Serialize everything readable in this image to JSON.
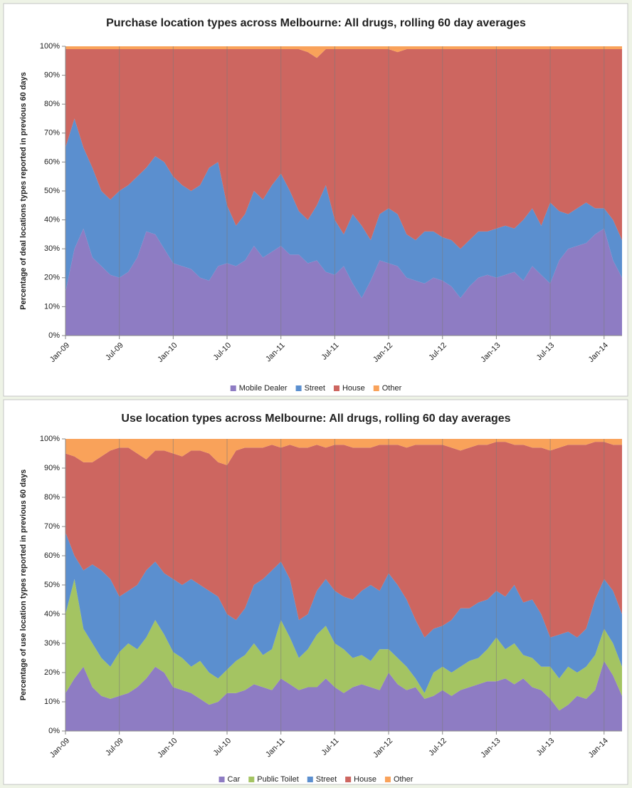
{
  "chart_data": [
    {
      "type": "stacked-area",
      "title": "Purchase location types across Melbourne: All drugs, rolling 60 day averages",
      "y_label": "Percentage of deal locations types reported in previous 60 days",
      "categories": [
        "Jan-09",
        null,
        null,
        null,
        null,
        null,
        "Jul-09",
        null,
        null,
        null,
        null,
        null,
        "Jan-10",
        null,
        null,
        null,
        null,
        null,
        "Jul-10",
        null,
        null,
        null,
        null,
        null,
        "Jan-11",
        null,
        null,
        null,
        null,
        null,
        "Jul-11",
        null,
        null,
        null,
        null,
        null,
        "Jan-12",
        null,
        null,
        null,
        null,
        null,
        "Jul-12",
        null,
        null,
        null,
        null,
        null,
        "Jan-13",
        null,
        null,
        null,
        null,
        null,
        "Jul-13",
        null,
        null,
        null,
        null,
        null,
        "Jan-14",
        null,
        null
      ],
      "ylim": [
        0,
        100
      ],
      "yticks": [
        {
          "value": 0,
          "label": "0%"
        },
        {
          "value": 10,
          "label": "10%"
        },
        {
          "value": 20,
          "label": "20%"
        },
        {
          "value": 30,
          "label": "30%"
        },
        {
          "value": 40,
          "label": "40%"
        },
        {
          "value": 50,
          "label": "50%"
        },
        {
          "value": 60,
          "label": "60%"
        },
        {
          "value": 70,
          "label": "70%"
        },
        {
          "value": 80,
          "label": "80%"
        },
        {
          "value": 90,
          "label": "90%"
        },
        {
          "value": 100,
          "label": "100%"
        }
      ],
      "grid": "x",
      "legend": "bottom",
      "series": [
        {
          "name": "Mobile Dealer",
          "color": "#8e7cc3",
          "values": [
            15,
            30,
            37,
            27,
            24,
            21,
            20,
            22,
            27,
            36,
            35,
            30,
            25,
            24,
            23,
            20,
            19,
            24,
            25,
            24,
            26,
            31,
            27,
            29,
            31,
            28,
            28,
            25,
            26,
            22,
            21,
            24,
            18,
            13,
            19,
            26,
            25,
            24,
            20,
            19,
            18,
            20,
            19,
            17,
            13,
            17,
            20,
            21,
            20,
            21,
            22,
            19,
            24,
            21,
            18,
            26,
            30,
            31,
            32,
            35,
            37,
            26,
            20
          ]
        },
        {
          "name": "Street",
          "color": "#5b8fcf",
          "values": [
            50,
            45,
            28,
            31,
            26,
            26,
            30,
            30,
            28,
            22,
            27,
            30,
            30,
            28,
            27,
            32,
            39,
            36,
            20,
            14,
            16,
            19,
            20,
            23,
            25,
            22,
            15,
            15,
            19,
            30,
            19,
            11,
            24,
            25,
            14,
            16,
            19,
            18,
            15,
            14,
            18,
            16,
            15,
            16,
            17,
            16,
            16,
            15,
            17,
            17,
            15,
            21,
            20,
            17,
            28,
            17,
            12,
            13,
            14,
            9,
            7,
            14,
            13
          ]
        },
        {
          "name": "House",
          "color": "#cd6660",
          "values": [
            34,
            24,
            34,
            41,
            49,
            52,
            49,
            47,
            44,
            41,
            37,
            39,
            44,
            47,
            49,
            47,
            41,
            39,
            54,
            61,
            57,
            49,
            52,
            47,
            43,
            49,
            56,
            58,
            51,
            47,
            59,
            64,
            57,
            61,
            66,
            57,
            55,
            56,
            64,
            66,
            63,
            63,
            65,
            66,
            69,
            66,
            63,
            63,
            62,
            61,
            62,
            59,
            55,
            61,
            53,
            56,
            57,
            55,
            53,
            55,
            55,
            59,
            66
          ]
        },
        {
          "name": "Other",
          "color": "#f9a25a",
          "values": [
            1,
            1,
            1,
            1,
            1,
            1,
            1,
            1,
            1,
            1,
            1,
            1,
            1,
            1,
            1,
            1,
            1,
            1,
            1,
            1,
            1,
            1,
            1,
            1,
            1,
            1,
            1,
            2,
            4,
            1,
            1,
            1,
            1,
            1,
            1,
            1,
            1,
            2,
            1,
            1,
            1,
            1,
            1,
            1,
            1,
            1,
            1,
            1,
            1,
            1,
            1,
            1,
            1,
            1,
            1,
            1,
            1,
            1,
            1,
            1,
            1,
            1,
            1
          ]
        }
      ]
    },
    {
      "type": "stacked-area",
      "title": "Use location types across Melbourne: All drugs, rolling 60 day averages",
      "y_label": "Percentage of use location types reported in previous 60 days",
      "categories": [
        "Jan-09",
        null,
        null,
        null,
        null,
        null,
        "Jul-09",
        null,
        null,
        null,
        null,
        null,
        "Jan-10",
        null,
        null,
        null,
        null,
        null,
        "Jul-10",
        null,
        null,
        null,
        null,
        null,
        "Jan-11",
        null,
        null,
        null,
        null,
        null,
        "Jul-11",
        null,
        null,
        null,
        null,
        null,
        "Jan-12",
        null,
        null,
        null,
        null,
        null,
        "Jul-12",
        null,
        null,
        null,
        null,
        null,
        "Jan-13",
        null,
        null,
        null,
        null,
        null,
        "Jul-13",
        null,
        null,
        null,
        null,
        null,
        "Jan-14",
        null,
        null
      ],
      "ylim": [
        0,
        100
      ],
      "yticks": [
        {
          "value": 0,
          "label": "0%"
        },
        {
          "value": 10,
          "label": "10%"
        },
        {
          "value": 20,
          "label": "20%"
        },
        {
          "value": 30,
          "label": "30%"
        },
        {
          "value": 40,
          "label": "40%"
        },
        {
          "value": 50,
          "label": "50%"
        },
        {
          "value": 60,
          "label": "60%"
        },
        {
          "value": 70,
          "label": "70%"
        },
        {
          "value": 80,
          "label": "80%"
        },
        {
          "value": 90,
          "label": "90%"
        },
        {
          "value": 100,
          "label": "100%"
        }
      ],
      "grid": "x",
      "legend": "bottom",
      "series": [
        {
          "name": "Car",
          "color": "#8e7cc3",
          "values": [
            13,
            18,
            22,
            15,
            12,
            11,
            12,
            13,
            15,
            18,
            22,
            20,
            15,
            14,
            13,
            11,
            9,
            10,
            13,
            13,
            14,
            16,
            15,
            14,
            18,
            16,
            14,
            15,
            15,
            18,
            15,
            13,
            15,
            16,
            15,
            14,
            20,
            16,
            14,
            15,
            11,
            12,
            14,
            12,
            14,
            15,
            16,
            17,
            17,
            18,
            16,
            18,
            15,
            14,
            11,
            7,
            9,
            12,
            11,
            14,
            24,
            19,
            12
          ]
        },
        {
          "name": "Public Toilet",
          "color": "#a4c462",
          "values": [
            27,
            34,
            13,
            15,
            13,
            11,
            15,
            17,
            13,
            14,
            16,
            13,
            12,
            11,
            9,
            13,
            11,
            8,
            8,
            11,
            12,
            14,
            11,
            14,
            20,
            16,
            11,
            13,
            18,
            18,
            15,
            15,
            10,
            10,
            9,
            14,
            8,
            9,
            8,
            3,
            2,
            8,
            8,
            8,
            8,
            9,
            9,
            11,
            15,
            10,
            14,
            8,
            10,
            8,
            11,
            11,
            13,
            8,
            11,
            12,
            11,
            11,
            10
          ]
        },
        {
          "name": "Street",
          "color": "#5b8fcf",
          "values": [
            28,
            8,
            20,
            27,
            30,
            30,
            19,
            18,
            22,
            23,
            20,
            21,
            25,
            25,
            30,
            26,
            28,
            28,
            19,
            14,
            16,
            20,
            26,
            27,
            20,
            20,
            13,
            12,
            15,
            16,
            18,
            18,
            20,
            22,
            26,
            20,
            26,
            25,
            23,
            20,
            19,
            15,
            14,
            18,
            20,
            18,
            19,
            17,
            16,
            18,
            20,
            18,
            20,
            18,
            10,
            15,
            12,
            12,
            13,
            19,
            17,
            18,
            18
          ]
        },
        {
          "name": "House",
          "color": "#cd6660",
          "values": [
            27,
            34,
            37,
            35,
            39,
            44,
            51,
            49,
            45,
            38,
            38,
            42,
            43,
            44,
            44,
            46,
            47,
            46,
            51,
            58,
            55,
            47,
            45,
            43,
            39,
            46,
            59,
            57,
            50,
            45,
            50,
            52,
            52,
            49,
            47,
            50,
            44,
            48,
            52,
            60,
            66,
            63,
            62,
            59,
            54,
            55,
            54,
            53,
            51,
            53,
            48,
            54,
            52,
            57,
            64,
            64,
            64,
            66,
            63,
            54,
            47,
            50,
            58
          ]
        },
        {
          "name": "Other",
          "color": "#f9a25a",
          "values": [
            5,
            6,
            8,
            8,
            6,
            4,
            3,
            3,
            5,
            7,
            4,
            4,
            5,
            6,
            4,
            4,
            5,
            8,
            9,
            4,
            3,
            3,
            3,
            2,
            3,
            2,
            3,
            3,
            2,
            3,
            2,
            2,
            3,
            3,
            3,
            2,
            2,
            2,
            3,
            2,
            2,
            2,
            2,
            3,
            4,
            3,
            2,
            2,
            1,
            1,
            2,
            2,
            3,
            3,
            4,
            3,
            2,
            2,
            2,
            1,
            1,
            2,
            2
          ]
        }
      ]
    }
  ]
}
